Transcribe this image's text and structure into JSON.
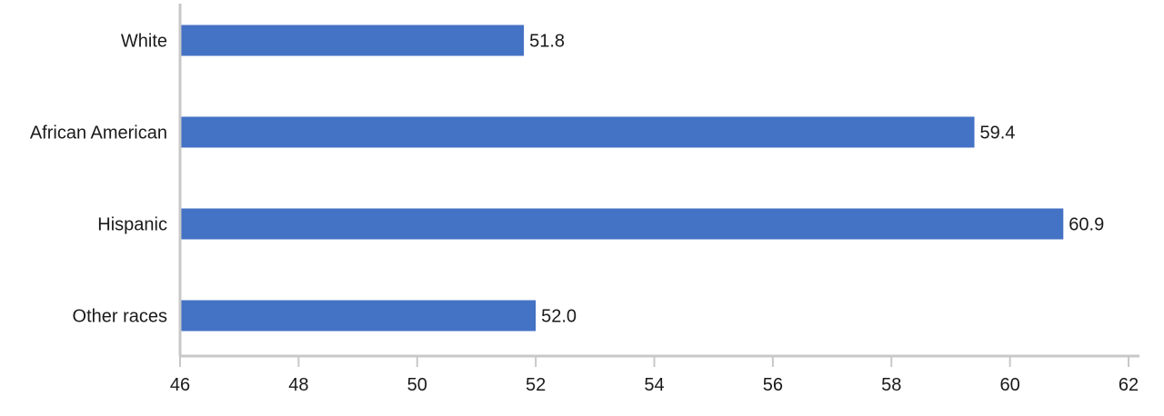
{
  "chart_data": {
    "type": "bar",
    "orientation": "horizontal",
    "categories": [
      "White",
      "African American",
      "Hispanic",
      "Other races"
    ],
    "values": [
      51.8,
      59.4,
      60.9,
      52.0
    ],
    "value_labels": [
      "51.8",
      "59.4",
      "60.9",
      "52.0"
    ],
    "xlim": [
      46,
      62
    ],
    "xticks": [
      46,
      48,
      50,
      52,
      54,
      56,
      58,
      60,
      62
    ],
    "grid": false,
    "legend": "none",
    "colors": {
      "bar": "#4472c4",
      "axis": "#c8c8c8",
      "text": "#1a1a1a"
    }
  }
}
